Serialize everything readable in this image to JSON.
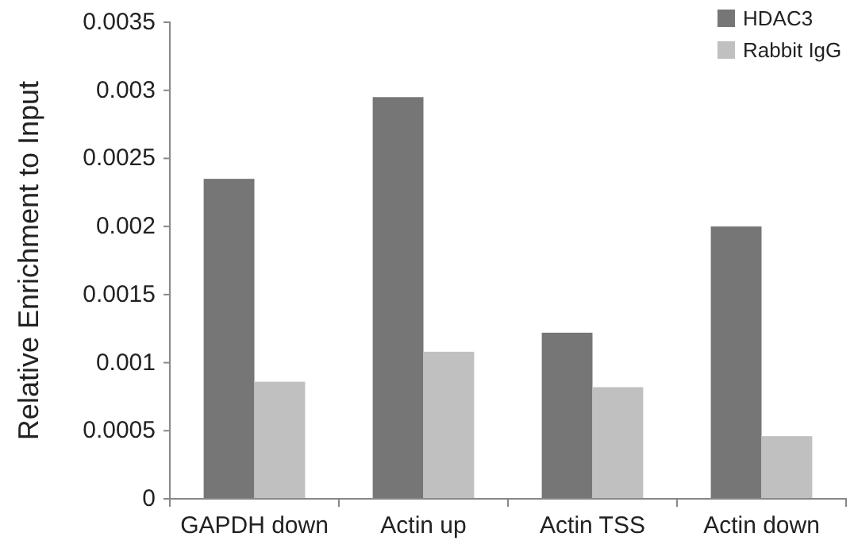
{
  "chart_data": {
    "type": "bar",
    "ylabel": "Relative Enrichment to Input",
    "categories": [
      "GAPDH down",
      "Actin up",
      "Actin TSS",
      "Actin down"
    ],
    "series": [
      {
        "name": "HDAC3",
        "color": "#767676",
        "values": [
          0.00235,
          0.00295,
          0.00122,
          0.002
        ]
      },
      {
        "name": "Rabbit IgG",
        "color": "#c0c0c0",
        "values": [
          0.00086,
          0.00108,
          0.00082,
          0.00046
        ]
      }
    ],
    "ylim": [
      0,
      0.0035
    ],
    "yticks": [
      0,
      0.0005,
      0.001,
      0.0015,
      0.002,
      0.0025,
      0.003,
      0.0035
    ],
    "grid": false,
    "legend": "top right"
  }
}
